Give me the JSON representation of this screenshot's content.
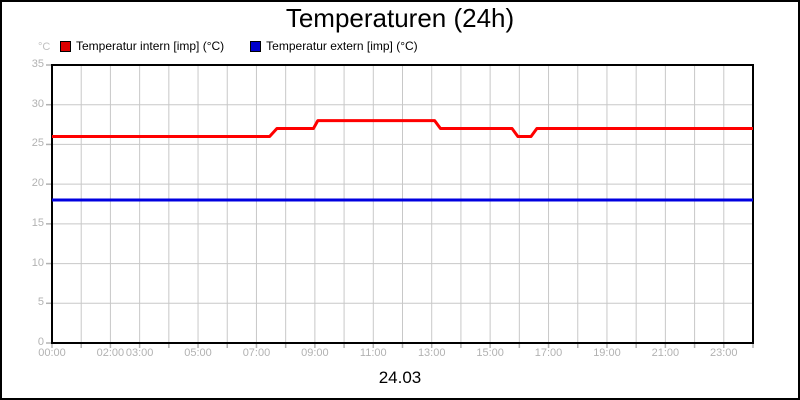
{
  "page": {
    "background": "#ffffff",
    "frame_border_color": "#000000"
  },
  "chart_data": {
    "type": "line",
    "title": "Temperaturen (24h)",
    "y_unit": "°C",
    "x_date_label": "24.03",
    "ylim": [
      0,
      35
    ],
    "xlim_hours": [
      0,
      24
    ],
    "y_ticks": [
      0,
      5,
      10,
      15,
      20,
      25,
      30,
      35
    ],
    "x_tick_hours": [
      0,
      2,
      3,
      5,
      7,
      9,
      11,
      13,
      15,
      17,
      19,
      21,
      23
    ],
    "x_tick_labels": [
      "00:00",
      "02:00",
      "03:00",
      "05:00",
      "07:00",
      "09:00",
      "11:00",
      "13:00",
      "15:00",
      "17:00",
      "19:00",
      "21:00",
      "23:00"
    ],
    "grid": {
      "show": true,
      "color": "#c8c8c8",
      "x_interval_hours": 1,
      "y_interval": 5
    },
    "axis": {
      "border_color": "#000000",
      "tick_color": "#b2b2b2",
      "tick_label_color": "#b2b2b2"
    },
    "legend_position": "top-left",
    "series": [
      {
        "name": "Temperatur intern [imp] (°C)",
        "color": "#ff0000",
        "legend_color": "#dd0000",
        "points": [
          [
            0,
            26
          ],
          [
            7.45,
            26
          ],
          [
            7.7,
            27
          ],
          [
            8.95,
            27
          ],
          [
            9.1,
            28
          ],
          [
            13.1,
            28
          ],
          [
            13.3,
            27
          ],
          [
            15.75,
            27
          ],
          [
            15.95,
            26
          ],
          [
            16.4,
            26
          ],
          [
            16.6,
            27
          ],
          [
            24,
            27
          ]
        ]
      },
      {
        "name": "Temperatur extern [imp] (°C)",
        "color": "#0000e0",
        "legend_color": "#0000cc",
        "points": [
          [
            0,
            18
          ],
          [
            24,
            18
          ]
        ]
      }
    ]
  }
}
